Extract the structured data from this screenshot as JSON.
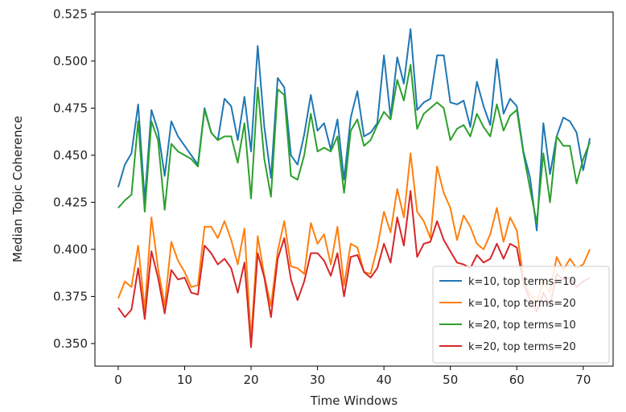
{
  "chart_data": {
    "type": "line",
    "title": "",
    "xlabel": "Time Windows",
    "ylabel": "Median Topic Coherence",
    "xlim": [
      -3.5,
      74.5
    ],
    "ylim": [
      0.338,
      0.526
    ],
    "xticks": [
      0,
      10,
      20,
      30,
      40,
      50,
      60,
      70
    ],
    "yticks": [
      0.35,
      0.375,
      0.4,
      0.425,
      0.45,
      0.475,
      0.5,
      0.525
    ],
    "ytick_labels": [
      "0.350",
      "0.375",
      "0.400",
      "0.425",
      "0.450",
      "0.475",
      "0.500",
      "0.525"
    ],
    "grid": false,
    "legend_position": "lower-right",
    "x": [
      0,
      1,
      2,
      3,
      4,
      5,
      6,
      7,
      8,
      9,
      10,
      11,
      12,
      13,
      14,
      15,
      16,
      17,
      18,
      19,
      20,
      21,
      22,
      23,
      24,
      25,
      26,
      27,
      28,
      29,
      30,
      31,
      32,
      33,
      34,
      35,
      36,
      37,
      38,
      39,
      40,
      41,
      42,
      43,
      44,
      45,
      46,
      47,
      48,
      49,
      50,
      51,
      52,
      53,
      54,
      55,
      56,
      57,
      58,
      59,
      60,
      61,
      62,
      63,
      64,
      65,
      66,
      67,
      68,
      69,
      70,
      71
    ],
    "series": [
      {
        "name": "k=10, top terms=10",
        "color": "#1f77b4",
        "values": [
          0.433,
          0.445,
          0.451,
          0.477,
          0.426,
          0.474,
          0.463,
          0.439,
          0.468,
          0.46,
          0.455,
          0.45,
          0.445,
          0.475,
          0.462,
          0.458,
          0.48,
          0.476,
          0.458,
          0.481,
          0.452,
          0.508,
          0.465,
          0.438,
          0.491,
          0.486,
          0.45,
          0.445,
          0.461,
          0.482,
          0.463,
          0.467,
          0.453,
          0.469,
          0.437,
          0.47,
          0.484,
          0.46,
          0.462,
          0.467,
          0.503,
          0.47,
          0.502,
          0.488,
          0.517,
          0.474,
          0.478,
          0.48,
          0.503,
          0.503,
          0.478,
          0.477,
          0.479,
          0.465,
          0.489,
          0.476,
          0.466,
          0.501,
          0.472,
          0.48,
          0.476,
          0.452,
          0.438,
          0.41,
          0.467,
          0.44,
          0.46,
          0.47,
          0.468,
          0.462,
          0.442,
          0.459
        ]
      },
      {
        "name": "k=10, top terms=20",
        "color": "#ff7f0e",
        "values": [
          0.374,
          0.383,
          0.38,
          0.402,
          0.368,
          0.417,
          0.39,
          0.37,
          0.404,
          0.394,
          0.388,
          0.38,
          0.381,
          0.412,
          0.412,
          0.406,
          0.415,
          0.405,
          0.392,
          0.411,
          0.352,
          0.407,
          0.386,
          0.37,
          0.399,
          0.415,
          0.391,
          0.39,
          0.387,
          0.414,
          0.403,
          0.408,
          0.392,
          0.412,
          0.381,
          0.403,
          0.401,
          0.388,
          0.387,
          0.401,
          0.42,
          0.409,
          0.432,
          0.417,
          0.451,
          0.42,
          0.415,
          0.406,
          0.444,
          0.43,
          0.422,
          0.405,
          0.418,
          0.412,
          0.403,
          0.4,
          0.408,
          0.422,
          0.404,
          0.417,
          0.41,
          0.384,
          0.376,
          0.372,
          0.383,
          0.377,
          0.396,
          0.389,
          0.395,
          0.39,
          0.392,
          0.4
        ]
      },
      {
        "name": "k=20, top terms=10",
        "color": "#2ca02c",
        "values": [
          0.422,
          0.426,
          0.429,
          0.468,
          0.42,
          0.468,
          0.458,
          0.421,
          0.456,
          0.452,
          0.45,
          0.448,
          0.444,
          0.474,
          0.462,
          0.458,
          0.46,
          0.46,
          0.446,
          0.467,
          0.427,
          0.486,
          0.448,
          0.428,
          0.485,
          0.482,
          0.439,
          0.437,
          0.45,
          0.472,
          0.452,
          0.454,
          0.452,
          0.46,
          0.43,
          0.463,
          0.469,
          0.455,
          0.458,
          0.466,
          0.473,
          0.469,
          0.49,
          0.479,
          0.498,
          0.464,
          0.472,
          0.475,
          0.478,
          0.475,
          0.458,
          0.464,
          0.466,
          0.46,
          0.472,
          0.465,
          0.46,
          0.477,
          0.463,
          0.471,
          0.474,
          0.451,
          0.432,
          0.414,
          0.451,
          0.425,
          0.46,
          0.455,
          0.455,
          0.435,
          0.448,
          0.457
        ]
      },
      {
        "name": "k=20, top terms=20",
        "color": "#d62728",
        "values": [
          0.369,
          0.364,
          0.368,
          0.39,
          0.363,
          0.399,
          0.385,
          0.366,
          0.389,
          0.384,
          0.385,
          0.377,
          0.376,
          0.402,
          0.398,
          0.392,
          0.395,
          0.39,
          0.377,
          0.393,
          0.348,
          0.398,
          0.385,
          0.364,
          0.395,
          0.406,
          0.384,
          0.373,
          0.383,
          0.398,
          0.398,
          0.394,
          0.386,
          0.398,
          0.375,
          0.396,
          0.397,
          0.388,
          0.385,
          0.39,
          0.403,
          0.393,
          0.417,
          0.402,
          0.431,
          0.396,
          0.403,
          0.404,
          0.415,
          0.405,
          0.399,
          0.393,
          0.392,
          0.39,
          0.397,
          0.393,
          0.395,
          0.403,
          0.395,
          0.403,
          0.401,
          0.382,
          0.373,
          0.367,
          0.377,
          0.37,
          0.387,
          0.384,
          0.385,
          0.38,
          0.383,
          0.385
        ]
      }
    ]
  }
}
